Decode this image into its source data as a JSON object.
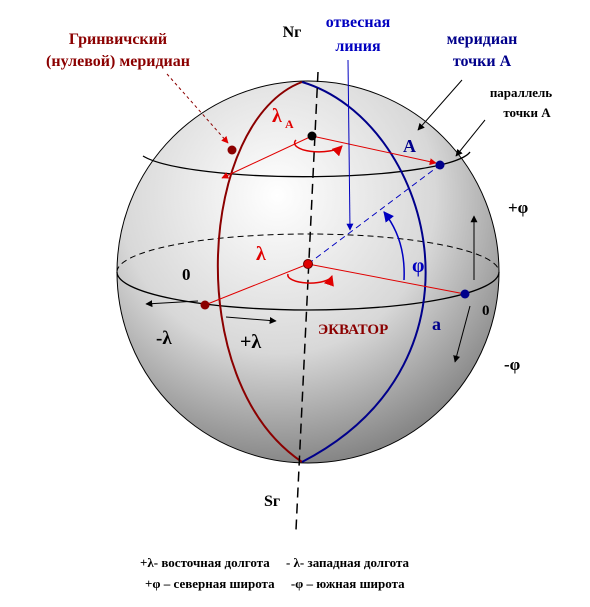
{
  "labels": {
    "greenwich": [
      "Гринвичский",
      "(нулевой) меридиан"
    ],
    "north": "Nг",
    "plumb": [
      "отвесная",
      "линия"
    ],
    "meridian_a": [
      "меридиан",
      "точки А"
    ],
    "parallel_a": [
      "параллель",
      "точки А"
    ],
    "lambda_a": "λ",
    "lambda_a_sub": "A",
    "point_a": "A",
    "plus_phi": "+φ",
    "lambda": "λ",
    "phi": "φ",
    "zero_left": "0",
    "zero_right": "0",
    "minus_lambda": "-λ",
    "plus_lambda": "+λ",
    "equator": "ЭКВАТОР",
    "point_a_small": "a",
    "minus_phi": "-φ",
    "south": "Sг"
  },
  "legend": [
    "+λ- восточная долгота     - λ- западная долгота",
    "+φ – северная широта     -φ – южная широта"
  ]
}
